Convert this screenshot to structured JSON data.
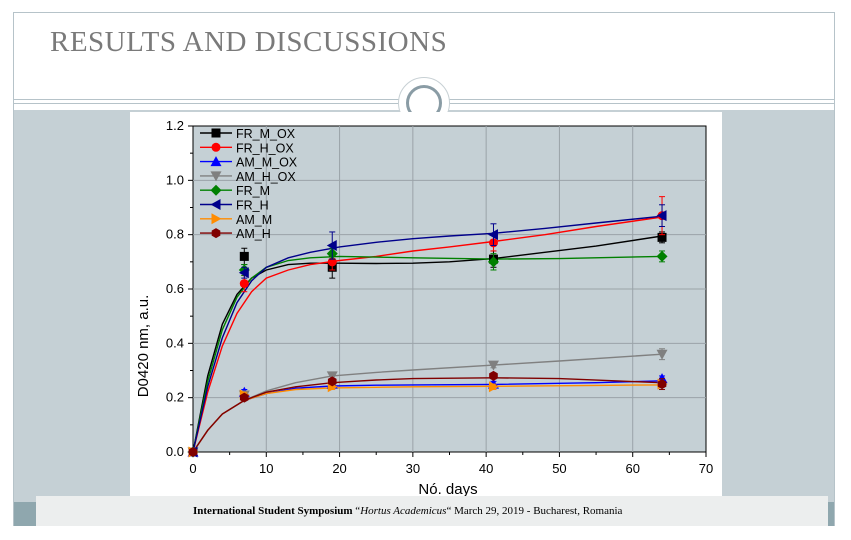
{
  "slide": {
    "title": "RESULTS AND DISCUSSIONS",
    "footer": {
      "bold": "International Student Symposium",
      "open": "“",
      "italic": "Hortus Academicus",
      "rest": "“ March 29, 2019 - Bucharest, Romania"
    }
  },
  "chart_data": {
    "type": "scatter",
    "xlabel": "Nó. days",
    "ylabel": "D0420 nm, a.u.",
    "xlim": [
      0,
      70
    ],
    "ylim": [
      0,
      1.2
    ],
    "xticks": [
      "0",
      "10",
      "20",
      "30",
      "40",
      "50",
      "60",
      "70"
    ],
    "yticks": [
      "0.0",
      "0.2",
      "0.4",
      "0.6",
      "0.8",
      "1.0",
      "1.2"
    ],
    "grid": true,
    "legend_position": "top-left",
    "series": [
      {
        "name": "FR_M_OX",
        "color": "#000000",
        "marker": "square",
        "points": [
          [
            0,
            0.0
          ],
          [
            7,
            0.72
          ],
          [
            19,
            0.68
          ],
          [
            41,
            0.71
          ],
          [
            64,
            0.79
          ]
        ],
        "errors": [
          0,
          0.03,
          0.04,
          0.03,
          0.02
        ],
        "fit": [
          [
            0,
            0.0
          ],
          [
            2,
            0.28
          ],
          [
            4,
            0.47
          ],
          [
            6,
            0.58
          ],
          [
            8,
            0.64
          ],
          [
            10,
            0.67
          ],
          [
            13,
            0.69
          ],
          [
            16,
            0.695
          ],
          [
            20,
            0.695
          ],
          [
            25,
            0.694
          ],
          [
            30,
            0.695
          ],
          [
            35,
            0.7
          ],
          [
            41,
            0.712
          ],
          [
            48,
            0.735
          ],
          [
            55,
            0.758
          ],
          [
            64,
            0.795
          ]
        ]
      },
      {
        "name": "FR_H_OX",
        "color": "#ff0000",
        "marker": "circle",
        "points": [
          [
            0,
            0.0
          ],
          [
            7,
            0.62
          ],
          [
            19,
            0.7
          ],
          [
            41,
            0.77
          ],
          [
            64,
            0.87
          ]
        ],
        "errors": [
          0,
          0.03,
          0.03,
          0.03,
          0.07
        ],
        "fit": [
          [
            0,
            0.0
          ],
          [
            2,
            0.22
          ],
          [
            4,
            0.39
          ],
          [
            6,
            0.51
          ],
          [
            8,
            0.59
          ],
          [
            10,
            0.64
          ],
          [
            13,
            0.67
          ],
          [
            16,
            0.69
          ],
          [
            20,
            0.705
          ],
          [
            25,
            0.72
          ],
          [
            30,
            0.74
          ],
          [
            35,
            0.755
          ],
          [
            41,
            0.775
          ],
          [
            48,
            0.8
          ],
          [
            55,
            0.83
          ],
          [
            64,
            0.865
          ]
        ]
      },
      {
        "name": "AM_M_OX",
        "color": "#0000ff",
        "marker": "triangle-up",
        "points": [
          [
            0,
            0.0
          ],
          [
            7,
            0.22
          ],
          [
            19,
            0.25
          ],
          [
            41,
            0.25
          ],
          [
            64,
            0.27
          ]
        ],
        "errors": [
          0,
          0.01,
          0.01,
          0.01,
          0.01
        ],
        "fit": [
          [
            0,
            0.0
          ],
          [
            2,
            0.08
          ],
          [
            4,
            0.14
          ],
          [
            7,
            0.19
          ],
          [
            10,
            0.215
          ],
          [
            14,
            0.235
          ],
          [
            19,
            0.243
          ],
          [
            25,
            0.246
          ],
          [
            30,
            0.247
          ],
          [
            41,
            0.249
          ],
          [
            55,
            0.255
          ],
          [
            64,
            0.262
          ]
        ]
      },
      {
        "name": "AM_H_OX",
        "color": "#808080",
        "marker": "triangle-down",
        "points": [
          [
            0,
            0.0
          ],
          [
            7,
            0.21
          ],
          [
            19,
            0.28
          ],
          [
            41,
            0.32
          ],
          [
            64,
            0.36
          ]
        ],
        "errors": [
          0,
          0.01,
          0.01,
          0.01,
          0.02
        ],
        "fit": [
          [
            0,
            0.0
          ],
          [
            2,
            0.08
          ],
          [
            4,
            0.14
          ],
          [
            7,
            0.19
          ],
          [
            10,
            0.225
          ],
          [
            14,
            0.255
          ],
          [
            19,
            0.28
          ],
          [
            25,
            0.293
          ],
          [
            30,
            0.302
          ],
          [
            41,
            0.32
          ],
          [
            50,
            0.335
          ],
          [
            64,
            0.36
          ]
        ]
      },
      {
        "name": "FR_M",
        "color": "#008000",
        "marker": "diamond",
        "points": [
          [
            0,
            0.0
          ],
          [
            7,
            0.67
          ],
          [
            19,
            0.73
          ],
          [
            41,
            0.7
          ],
          [
            64,
            0.72
          ]
        ],
        "errors": [
          0,
          0.02,
          0.02,
          0.03,
          0.02
        ],
        "fit": [
          [
            0,
            0.0
          ],
          [
            2,
            0.26
          ],
          [
            4,
            0.45
          ],
          [
            6,
            0.57
          ],
          [
            8,
            0.64
          ],
          [
            10,
            0.68
          ],
          [
            13,
            0.705
          ],
          [
            16,
            0.715
          ],
          [
            20,
            0.72
          ],
          [
            30,
            0.715
          ],
          [
            41,
            0.71
          ],
          [
            50,
            0.712
          ],
          [
            64,
            0.72
          ]
        ]
      },
      {
        "name": "FR_H",
        "color": "#00008b",
        "marker": "triangle-left",
        "points": [
          [
            0,
            0.0
          ],
          [
            7,
            0.66
          ],
          [
            19,
            0.76
          ],
          [
            41,
            0.8
          ],
          [
            64,
            0.87
          ]
        ],
        "errors": [
          0,
          0.02,
          0.05,
          0.04,
          0.04
        ],
        "fit": [
          [
            0,
            0.0
          ],
          [
            2,
            0.24
          ],
          [
            4,
            0.42
          ],
          [
            6,
            0.55
          ],
          [
            8,
            0.63
          ],
          [
            10,
            0.68
          ],
          [
            13,
            0.715
          ],
          [
            16,
            0.735
          ],
          [
            20,
            0.755
          ],
          [
            25,
            0.772
          ],
          [
            30,
            0.785
          ],
          [
            35,
            0.795
          ],
          [
            41,
            0.805
          ],
          [
            48,
            0.823
          ],
          [
            55,
            0.843
          ],
          [
            64,
            0.868
          ]
        ]
      },
      {
        "name": "AM_M",
        "color": "#ff8c00",
        "marker": "triangle-right",
        "points": [
          [
            0,
            0.0
          ],
          [
            7,
            0.21
          ],
          [
            19,
            0.24
          ],
          [
            41,
            0.24
          ],
          [
            64,
            0.25
          ]
        ],
        "errors": [
          0,
          0.01,
          0.01,
          0.01,
          0.01
        ],
        "fit": [
          [
            0,
            0.0
          ],
          [
            2,
            0.08
          ],
          [
            4,
            0.14
          ],
          [
            7,
            0.19
          ],
          [
            10,
            0.215
          ],
          [
            14,
            0.23
          ],
          [
            19,
            0.236
          ],
          [
            25,
            0.238
          ],
          [
            30,
            0.24
          ],
          [
            41,
            0.242
          ],
          [
            55,
            0.245
          ],
          [
            64,
            0.247
          ]
        ]
      },
      {
        "name": "AM_H",
        "color": "#800000",
        "marker": "hexagon",
        "points": [
          [
            0,
            0.0
          ],
          [
            7,
            0.2
          ],
          [
            19,
            0.26
          ],
          [
            41,
            0.28
          ],
          [
            64,
            0.25
          ]
        ],
        "errors": [
          0,
          0.01,
          0.01,
          0.01,
          0.02
        ],
        "fit": [
          [
            0,
            0.0
          ],
          [
            2,
            0.08
          ],
          [
            4,
            0.14
          ],
          [
            7,
            0.19
          ],
          [
            10,
            0.22
          ],
          [
            14,
            0.24
          ],
          [
            19,
            0.255
          ],
          [
            25,
            0.265
          ],
          [
            30,
            0.27
          ],
          [
            41,
            0.273
          ],
          [
            50,
            0.27
          ],
          [
            64,
            0.255
          ]
        ]
      }
    ]
  }
}
